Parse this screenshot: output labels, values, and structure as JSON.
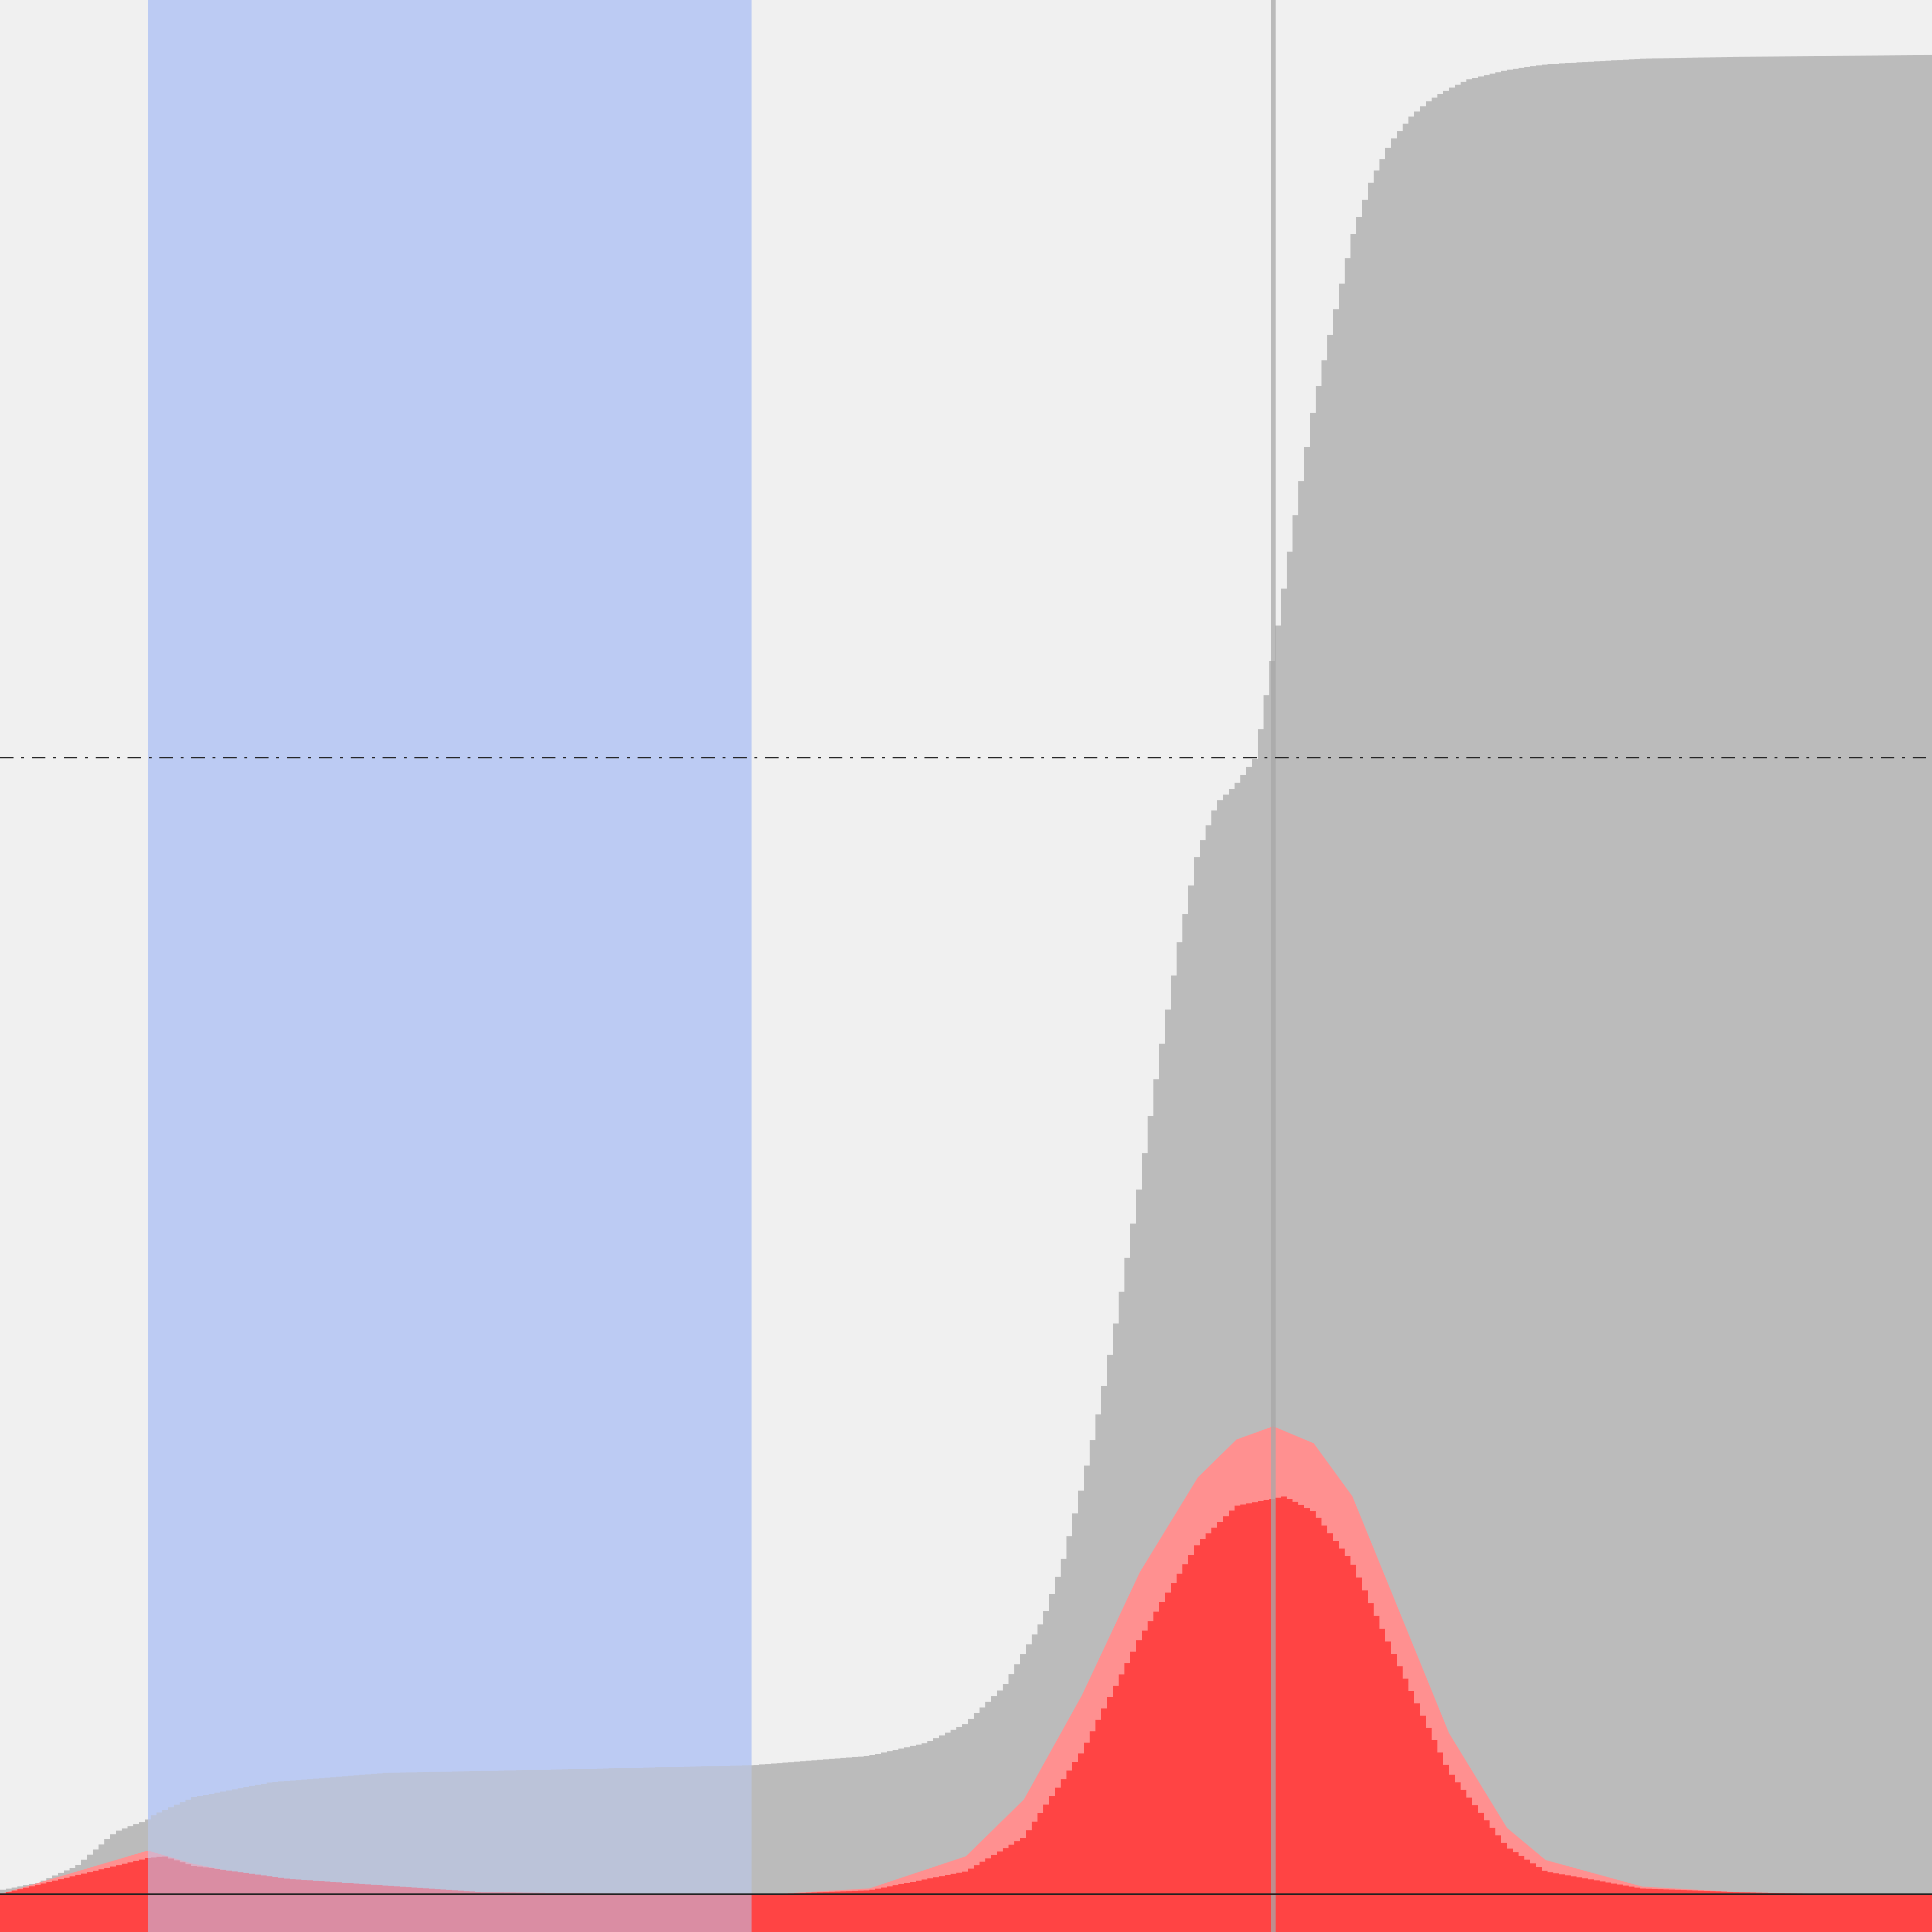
{
  "chart_data": {
    "type": "area",
    "title": "",
    "xlabel": "",
    "ylabel": "",
    "xlim": [
      0,
      100
    ],
    "ylim": [
      -2,
      100
    ],
    "grid": false,
    "legend": "none",
    "colors": {
      "background": "#f0f0f0",
      "band": "#bccbf3",
      "cumulative": "#bbbbbb",
      "light_peak": "#ff9090",
      "dark_peak": "#ff4444",
      "band_overlap": "#9aaad1",
      "marker_line": "#a8a8a8",
      "reference_line": "#222222"
    },
    "shaded_band": {
      "x_start": 7.65,
      "x_end": 38.9
    },
    "vertical_marker": {
      "x": 65.9
    },
    "horizontal_reference_dashed": {
      "y": 60
    },
    "horizontal_reference_solid": {
      "y": 0
    },
    "series": [
      {
        "style": "stepped-area",
        "x": [
          0,
          2,
          4,
          6,
          7.6,
          8,
          10,
          14,
          20,
          30,
          38.9,
          45,
          48,
          50,
          52,
          54,
          55,
          56,
          57,
          58,
          59,
          60,
          61,
          62,
          63,
          64,
          65,
          66,
          67,
          68,
          69,
          70,
          71,
          72,
          73,
          74,
          75,
          76,
          78,
          80,
          85,
          90,
          100
        ],
        "values": [
          0.2,
          0.6,
          1.5,
          3.3,
          3.9,
          4.2,
          5.1,
          5.9,
          6.4,
          6.6,
          6.8,
          7.3,
          8.0,
          9.0,
          11.0,
          14.5,
          17.5,
          21.5,
          26.0,
          31.5,
          37.5,
          44.0,
          50.0,
          55.0,
          57.6,
          58.6,
          60.0,
          66.0,
          72.5,
          78.5,
          83.0,
          87.5,
          90.5,
          92.5,
          93.8,
          94.7,
          95.3,
          95.8,
          96.3,
          96.6,
          96.9,
          97.0,
          97.1
        ]
      },
      {
        "style": "smooth-area",
        "x": [
          0,
          4,
          7.65,
          10,
          15,
          25,
          35,
          40,
          45,
          50,
          53,
          56,
          59,
          62,
          64,
          65.9,
          68,
          70,
          72,
          75,
          78,
          80,
          85,
          90,
          95,
          100
        ],
        "values": [
          0,
          1.2,
          2.3,
          1.6,
          0.6,
          0.1,
          0,
          0,
          0.3,
          2.0,
          5.0,
          10.5,
          17.0,
          22.0,
          24.0,
          24.7,
          23.8,
          21.0,
          16.0,
          8.5,
          3.5,
          1.8,
          0.4,
          0.1,
          0,
          0
        ]
      },
      {
        "style": "stepped-area",
        "x": [
          0,
          4,
          7.65,
          8.5,
          10,
          15,
          25,
          35,
          40,
          45,
          50,
          53,
          56,
          59,
          62,
          64,
          66.5,
          68,
          70,
          72,
          75,
          78,
          80,
          85,
          90,
          95,
          100
        ],
        "values": [
          0,
          1.0,
          1.9,
          2.0,
          1.5,
          0.8,
          0.1,
          0,
          0,
          0.2,
          1.2,
          3.0,
          7.5,
          13.5,
          18.5,
          20.5,
          21.0,
          20.2,
          17.5,
          13.0,
          6.5,
          2.5,
          1.2,
          0.3,
          0.1,
          0,
          0
        ]
      }
    ]
  }
}
